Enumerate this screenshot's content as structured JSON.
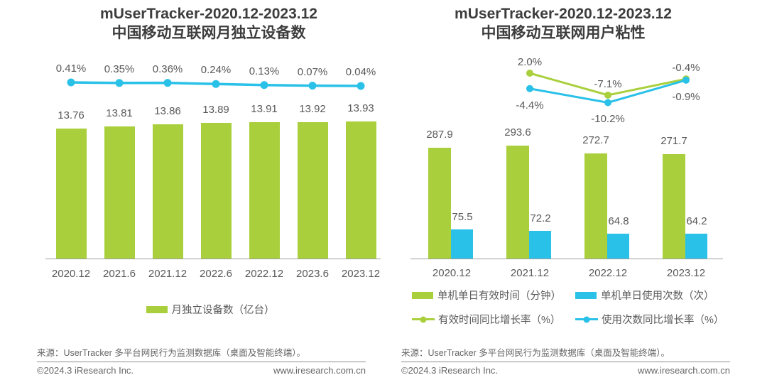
{
  "colors": {
    "green": "#a9d03c",
    "blue": "#29c1e8",
    "title": "#3d3d3d",
    "label": "#595959",
    "axis": "#9e9e9e",
    "footer": "#666666"
  },
  "left_panel": {
    "title_line1": "mUserTracker-2020.12-2023.12",
    "title_line2": "中国移动互联网月独立设备数",
    "source": "来源：UserTracker 多平台网民行为监测数据库（桌面及智能终端）。",
    "copyright": "©2024.3 iResearch Inc.",
    "website": "www.iresearch.com.cn"
  },
  "right_panel": {
    "title_line1": "mUserTracker-2020.12-2023.12",
    "title_line2": "中国移动互联网用户粘性",
    "source": "来源：UserTracker 多平台网民行为监测数据库（桌面及智能终端）。",
    "copyright": "©2024.3 iResearch Inc.",
    "website": "www.iresearch.com.cn"
  },
  "chart_data": [
    {
      "type": "bar+line",
      "title": "mUserTracker-2020.12-2023.12 中国移动互联网月独立设备数",
      "categories": [
        "2020.12",
        "2021.6",
        "2021.12",
        "2022.6",
        "2022.12",
        "2023.6",
        "2023.12"
      ],
      "series": [
        {
          "name": "月独立设备数（亿台）",
          "type": "bar",
          "color_key": "green",
          "values": [
            13.76,
            13.81,
            13.86,
            13.89,
            13.91,
            13.92,
            13.93
          ],
          "labels": [
            "13.76",
            "13.81",
            "13.86",
            "13.89",
            "13.91",
            "13.92",
            "13.93"
          ]
        },
        {
          "type": "line",
          "color_key": "blue",
          "values": [
            0.41,
            0.35,
            0.36,
            0.24,
            0.13,
            0.07,
            0.04
          ],
          "labels": [
            "0.41%",
            "0.35%",
            "0.36%",
            "0.24%",
            "0.13%",
            "0.07%",
            "0.04%"
          ]
        }
      ],
      "legend": [
        {
          "marker": "bar",
          "color_key": "green",
          "label": "月独立设备数（亿台）"
        }
      ],
      "grid": false,
      "legend_position": "bottom"
    },
    {
      "type": "grouped-bar+line",
      "title": "mUserTracker-2020.12-2023.12 中国移动互联网用户粘性",
      "categories": [
        "2020.12",
        "2021.12",
        "2022.12",
        "2023.12"
      ],
      "series": [
        {
          "name": "单机单日有效时间（分钟）",
          "type": "bar",
          "color_key": "green",
          "values": [
            287.9,
            293.6,
            272.7,
            271.7
          ],
          "labels": [
            "287.9",
            "293.6",
            "272.7",
            "271.7"
          ]
        },
        {
          "name": "单机单日使用次数（次）",
          "type": "bar",
          "color_key": "blue",
          "values": [
            75.5,
            72.2,
            64.8,
            64.2
          ],
          "labels": [
            "75.5",
            "72.2",
            "64.8",
            "64.2"
          ]
        },
        {
          "name": "有效时间同比增长率（%）",
          "type": "line",
          "color_key": "green",
          "values": [
            null,
            2.0,
            -7.1,
            -0.4
          ],
          "labels": [
            null,
            "2.0%",
            "-7.1%",
            "-0.4%"
          ]
        },
        {
          "name": "使用次数同比增长率（%）",
          "type": "line",
          "color_key": "blue",
          "values": [
            null,
            -4.4,
            -10.2,
            -0.9
          ],
          "labels": [
            null,
            "-4.4%",
            "-10.2%",
            "-0.9%"
          ]
        }
      ],
      "legend": [
        {
          "marker": "bar",
          "color_key": "green",
          "label": "单机单日有效时间（分钟）"
        },
        {
          "marker": "bar",
          "color_key": "blue",
          "label": "单机单日使用次数（次）"
        },
        {
          "marker": "line",
          "color_key": "green",
          "label": "有效时间同比增长率（%）"
        },
        {
          "marker": "line",
          "color_key": "blue",
          "label": "使用次数同比增长率（%）"
        }
      ],
      "grid": false,
      "legend_position": "bottom"
    }
  ]
}
